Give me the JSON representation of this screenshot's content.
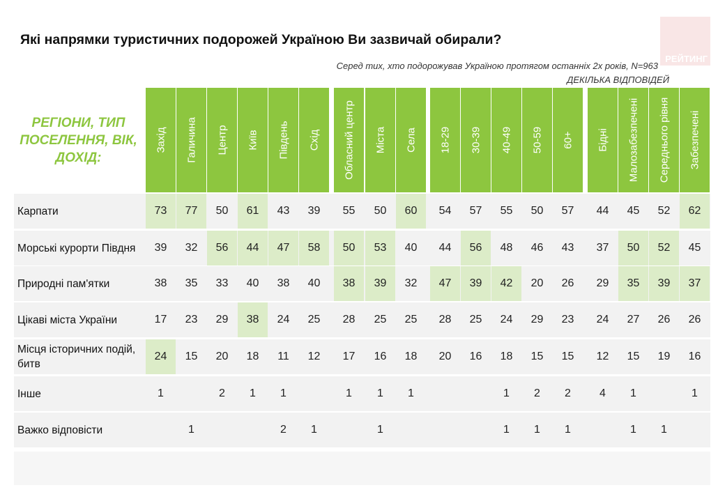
{
  "title": "Які напрямки туристичних подорожей Україною Ви зазвичай обирали?",
  "subtitle": "Серед тих, хто подорожував Україною протягом останніх 2х років, N=963",
  "note": "ДЕКІЛЬКА ВІДПОВІДЕЙ",
  "logo_text": "РЕЙТИНГ",
  "row_header": "РЕГІОНИ, ТИП\nПОСЕЛЕННЯ, ВІК,\nДОХІД:",
  "colors": {
    "header_green": "#8dc63f",
    "highlight": "#dcecc8",
    "row_bg": "#f2f2f2"
  },
  "chart_data": {
    "type": "table",
    "groups": [
      {
        "columns": [
          "Захід",
          "Галичина",
          "Центр",
          "Київ",
          "Південь",
          "Схід"
        ]
      },
      {
        "columns": [
          "Обласний центр",
          "Міста",
          "Села"
        ]
      },
      {
        "columns": [
          "18-29",
          "30-39",
          "40-49",
          "50-59",
          "60+"
        ]
      },
      {
        "columns": [
          "Бідні",
          "Малозабезпечені",
          "Середнього рівня",
          "Забезпечені"
        ]
      }
    ],
    "rows": [
      {
        "label": "Карпати",
        "values": [
          "73",
          "77",
          "50",
          "61",
          "43",
          "39",
          "55",
          "50",
          "60",
          "54",
          "57",
          "55",
          "50",
          "57",
          "44",
          "45",
          "52",
          "62"
        ],
        "highlight": [
          0,
          1,
          3,
          8,
          17
        ]
      },
      {
        "label": "Морські курорти Півдня",
        "values": [
          "39",
          "32",
          "56",
          "44",
          "47",
          "58",
          "50",
          "53",
          "40",
          "44",
          "56",
          "48",
          "46",
          "43",
          "37",
          "50",
          "52",
          "45"
        ],
        "highlight": [
          2,
          3,
          4,
          5,
          6,
          7,
          10,
          15,
          16
        ]
      },
      {
        "label": "Природні пам'ятки",
        "values": [
          "38",
          "35",
          "33",
          "40",
          "38",
          "40",
          "38",
          "39",
          "32",
          "47",
          "39",
          "42",
          "20",
          "26",
          "29",
          "35",
          "39",
          "37"
        ],
        "highlight": [
          6,
          7,
          9,
          10,
          11,
          15,
          16,
          17
        ]
      },
      {
        "label": "Цікаві міста України",
        "values": [
          "17",
          "23",
          "29",
          "38",
          "24",
          "25",
          "28",
          "25",
          "25",
          "28",
          "25",
          "24",
          "29",
          "23",
          "24",
          "27",
          "26",
          "26"
        ],
        "highlight": [
          3
        ]
      },
      {
        "label": "Місця історичних подій, битв",
        "values": [
          "24",
          "15",
          "20",
          "18",
          "11",
          "12",
          "17",
          "16",
          "18",
          "20",
          "16",
          "18",
          "15",
          "15",
          "12",
          "15",
          "19",
          "16"
        ],
        "highlight": [
          0
        ]
      },
      {
        "label": "Інше",
        "values": [
          "1",
          "",
          "2",
          "1",
          "1",
          "",
          "1",
          "1",
          "1",
          "",
          "",
          "1",
          "2",
          "2",
          "4",
          "1",
          "",
          "1"
        ],
        "highlight": []
      },
      {
        "label": "Важко відповісти",
        "values": [
          "",
          "1",
          "",
          "",
          "2",
          "1",
          "",
          "1",
          "",
          "",
          "",
          "1",
          "1",
          "1",
          "",
          "1",
          "1",
          ""
        ],
        "highlight": []
      }
    ]
  }
}
